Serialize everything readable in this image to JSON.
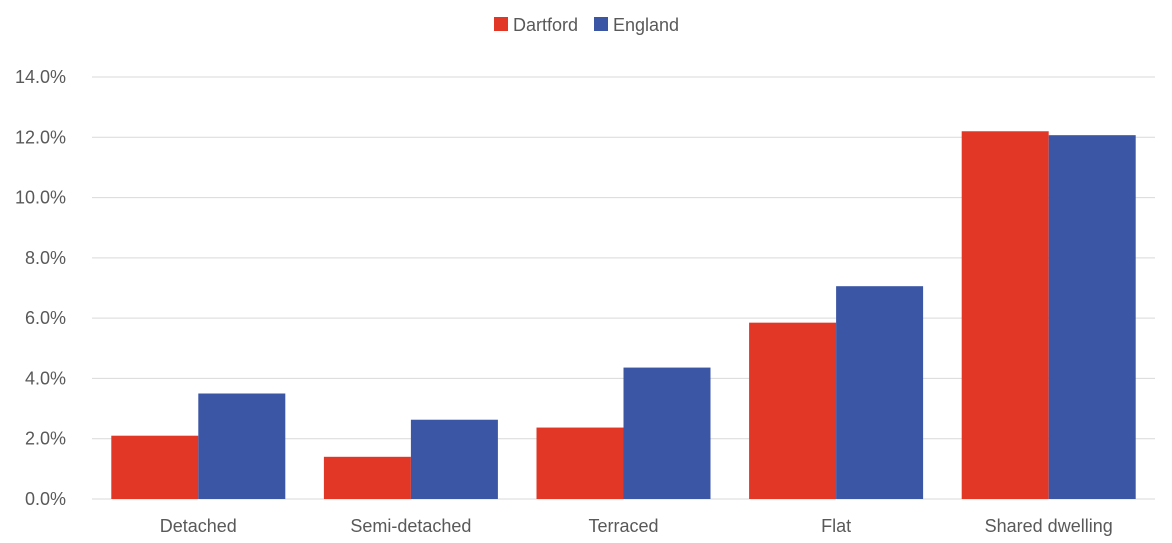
{
  "chart_data": {
    "type": "bar",
    "categories": [
      "Detached",
      "Semi-detached",
      "Terraced",
      "Flat",
      "Shared dwelling"
    ],
    "series": [
      {
        "name": "Dartford",
        "values": [
          0.021,
          0.014,
          0.0237,
          0.0585,
          0.122
        ],
        "color": "#e23726"
      },
      {
        "name": "England",
        "values": [
          0.035,
          0.0263,
          0.0436,
          0.0706,
          0.1207
        ],
        "color": "#3b56a5"
      }
    ],
    "ylim": [
      0,
      0.14
    ],
    "yticks": [
      0,
      0.02,
      0.04,
      0.06,
      0.08,
      0.1,
      0.12,
      0.14
    ],
    "ytick_labels": [
      "0.0%",
      "2.0%",
      "4.0%",
      "6.0%",
      "8.0%",
      "10.0%",
      "12.0%",
      "14.0%"
    ],
    "grid": true,
    "legend_position": "top-center"
  }
}
